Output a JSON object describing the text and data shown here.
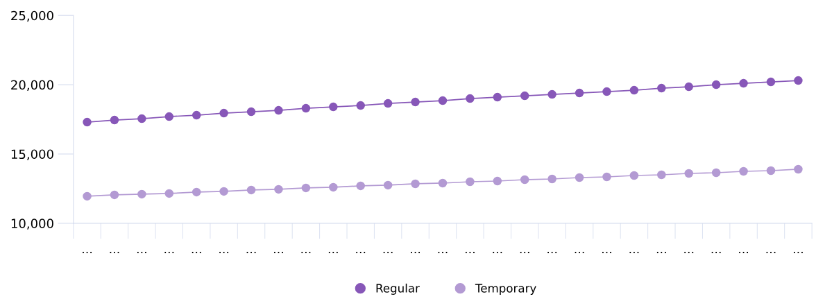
{
  "chart_data": {
    "type": "line",
    "categories": [
      "…",
      "…",
      "…",
      "…",
      "…",
      "…",
      "…",
      "…",
      "…",
      "…",
      "…",
      "…",
      "…",
      "…",
      "…",
      "…",
      "…",
      "…",
      "…",
      "…",
      "…",
      "…",
      "…",
      "…",
      "…",
      "…",
      "…"
    ],
    "series": [
      {
        "name": "Regular",
        "color": "#8757b8",
        "values": [
          17300,
          17450,
          17550,
          17700,
          17800,
          17950,
          18050,
          18150,
          18300,
          18400,
          18500,
          18650,
          18750,
          18850,
          19000,
          19100,
          19200,
          19300,
          19400,
          19500,
          19600,
          19750,
          19850,
          20000,
          20100,
          20200,
          20300
        ]
      },
      {
        "name": "Temporary",
        "color": "#b39ad3",
        "values": [
          11950,
          12050,
          12100,
          12150,
          12250,
          12300,
          12400,
          12450,
          12550,
          12600,
          12700,
          12750,
          12850,
          12900,
          13000,
          13050,
          13150,
          13200,
          13300,
          13350,
          13450,
          13500,
          13600,
          13650,
          13750,
          13800,
          13900
        ]
      }
    ],
    "ylim": [
      10000,
      25000
    ],
    "yticks": [
      {
        "value": 10000,
        "label": "10,000"
      },
      {
        "value": 15000,
        "label": "15,000"
      },
      {
        "value": 20000,
        "label": "20,000"
      },
      {
        "value": 25000,
        "label": "25,000"
      }
    ],
    "marker": "circle",
    "line_style": "solid",
    "legend": "bottom",
    "grid": false
  }
}
